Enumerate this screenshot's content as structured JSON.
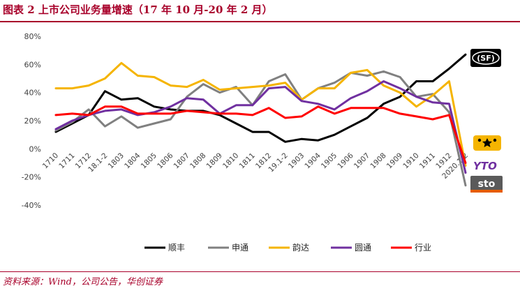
{
  "header": {
    "title": "图表 2 上市公司业务量增速（17 年 10 月-20 年 2 月）"
  },
  "footer": {
    "source": "资料来源：Wind，公司公告，华创证券"
  },
  "chart_data": {
    "type": "line",
    "categories": [
      "1710",
      "1711",
      "1712",
      "18.1-2",
      "1803",
      "1804",
      "1805",
      "1806",
      "1807",
      "1808",
      "1809",
      "1810",
      "1811",
      "1812",
      "19.1-2",
      "1903",
      "1904",
      "1905",
      "1906",
      "1907",
      "1908",
      "1909",
      "1910",
      "1911",
      "1912",
      "2020.1-2"
    ],
    "y_ticks": [
      "80%",
      "60%",
      "40%",
      "20%",
      "0%",
      "-20%",
      "-40%"
    ],
    "ylim": [
      -40,
      80
    ],
    "unit": "%",
    "grid": false,
    "legend_position": "bottom",
    "series": [
      {
        "name": "顺丰",
        "color": "#000000",
        "values": [
          12,
          18,
          24,
          41,
          35,
          36,
          30,
          28,
          27,
          27,
          24,
          18,
          12,
          12,
          5,
          7,
          6,
          10,
          16,
          22,
          32,
          37,
          48,
          48,
          57,
          67
        ]
      },
      {
        "name": "申通",
        "color": "#808080",
        "values": [
          13,
          19,
          28,
          16,
          23,
          15,
          18,
          21,
          37,
          46,
          40,
          44,
          31,
          48,
          53,
          35,
          43,
          47,
          54,
          52,
          55,
          51,
          37,
          39,
          26,
          -26
        ]
      },
      {
        "name": "韵达",
        "color": "#f5b400",
        "values": [
          43,
          43,
          45,
          50,
          61,
          52,
          51,
          45,
          44,
          49,
          42,
          43,
          44,
          45,
          47,
          35,
          43,
          43,
          54,
          56,
          45,
          40,
          30,
          38,
          48,
          -12
        ]
      },
      {
        "name": "圆通",
        "color": "#7030a0",
        "values": [
          14,
          20,
          24,
          27,
          28,
          24,
          26,
          30,
          36,
          35,
          25,
          31,
          31,
          43,
          44,
          34,
          32,
          28,
          36,
          41,
          48,
          43,
          37,
          33,
          32,
          -17
        ]
      },
      {
        "name": "行业",
        "color": "#ff0000",
        "values": [
          24,
          25,
          24,
          30,
          30,
          25,
          25,
          25,
          27,
          26,
          25,
          25,
          24,
          29,
          22,
          23,
          30,
          25,
          29,
          29,
          29,
          25,
          23,
          21,
          24,
          -10
        ]
      }
    ]
  },
  "logos": [
    {
      "name": "sf-logo",
      "text": "(SF)",
      "bg": "#000000",
      "fg": "#ffffff"
    },
    {
      "name": "yunda-logo",
      "text": "",
      "bg": "#f5b400",
      "fg": "#000000"
    },
    {
      "name": "yto-logo",
      "text": "YTO",
      "bg": "#ffffff",
      "fg": "#7030a0"
    },
    {
      "name": "sto-logo",
      "text": "sto",
      "bg": "#5a5a5a",
      "fg": "#ffffff"
    }
  ]
}
